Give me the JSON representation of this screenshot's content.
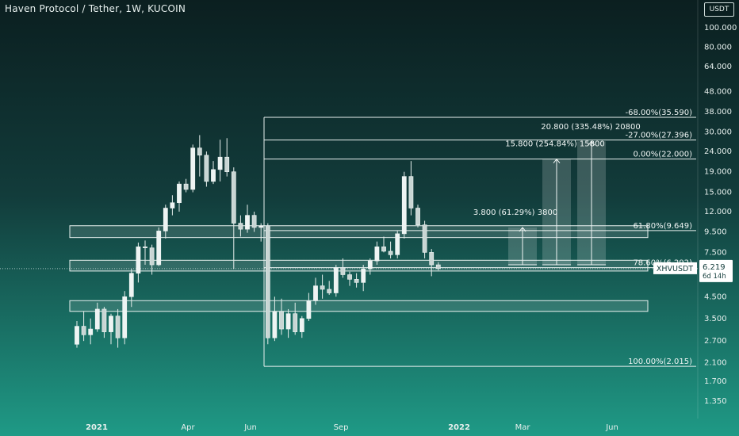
{
  "header": {
    "title": "Haven Protocol / Tether, 1W, KUCOIN",
    "unit": "USDT"
  },
  "chart_data": {
    "type": "candlestick",
    "scale": "log",
    "ylim": [
      1.2,
      125
    ],
    "x_tick_labels": [
      "2021",
      "Apr",
      "Jun",
      "Sep",
      "2022",
      "Mar",
      "Jun"
    ],
    "y_tick_labels": [
      "100.000",
      "80.000",
      "64.000",
      "48.000",
      "38.000",
      "30.000",
      "24.000",
      "19.000",
      "15.000",
      "12.000",
      "9.500",
      "7.500",
      "4.500",
      "3.500",
      "2.700",
      "2.100",
      "1.700",
      "1.350"
    ],
    "y_tick_values": [
      100,
      80,
      64,
      48,
      38,
      30,
      24,
      19,
      15,
      12,
      9.5,
      7.5,
      4.5,
      3.5,
      2.7,
      2.1,
      1.7,
      1.35
    ],
    "series_name": "XHVUSDT",
    "current_price": 6.219,
    "current_price_label": "6.219",
    "countdown_label": "6d 14h",
    "candles": [
      {
        "o": 2.6,
        "h": 3.4,
        "l": 2.5,
        "c": 3.2
      },
      {
        "o": 3.2,
        "h": 3.8,
        "l": 2.7,
        "c": 2.9
      },
      {
        "o": 2.9,
        "h": 3.5,
        "l": 2.6,
        "c": 3.1
      },
      {
        "o": 3.1,
        "h": 4.2,
        "l": 3.0,
        "c": 3.9
      },
      {
        "o": 3.9,
        "h": 4.0,
        "l": 2.8,
        "c": 3.0
      },
      {
        "o": 3.0,
        "h": 3.7,
        "l": 2.6,
        "c": 3.6
      },
      {
        "o": 3.6,
        "h": 3.9,
        "l": 2.5,
        "c": 2.8
      },
      {
        "o": 2.8,
        "h": 4.8,
        "l": 2.6,
        "c": 4.5
      },
      {
        "o": 4.5,
        "h": 6.2,
        "l": 4.0,
        "c": 5.9
      },
      {
        "o": 5.9,
        "h": 8.4,
        "l": 5.3,
        "c": 8.0
      },
      {
        "o": 8.0,
        "h": 8.6,
        "l": 6.5,
        "c": 7.9
      },
      {
        "o": 7.9,
        "h": 8.2,
        "l": 5.8,
        "c": 6.5
      },
      {
        "o": 6.5,
        "h": 10.0,
        "l": 6.4,
        "c": 9.6
      },
      {
        "o": 9.6,
        "h": 13.0,
        "l": 8.8,
        "c": 12.5
      },
      {
        "o": 12.5,
        "h": 14.5,
        "l": 11.5,
        "c": 13.3
      },
      {
        "o": 13.3,
        "h": 17.0,
        "l": 12.0,
        "c": 16.5
      },
      {
        "o": 16.5,
        "h": 17.5,
        "l": 15.0,
        "c": 15.5
      },
      {
        "o": 15.5,
        "h": 26.0,
        "l": 15.0,
        "c": 25.0
      },
      {
        "o": 25.0,
        "h": 29.0,
        "l": 18.0,
        "c": 23.0
      },
      {
        "o": 23.0,
        "h": 24.0,
        "l": 16.0,
        "c": 17.0
      },
      {
        "o": 17.0,
        "h": 21.5,
        "l": 16.5,
        "c": 19.5
      },
      {
        "o": 19.5,
        "h": 27.5,
        "l": 17.0,
        "c": 22.5
      },
      {
        "o": 22.5,
        "h": 28.0,
        "l": 18.0,
        "c": 19.0
      },
      {
        "o": 19.0,
        "h": 20.0,
        "l": 6.2,
        "c": 10.5
      },
      {
        "o": 10.5,
        "h": 11.5,
        "l": 9.0,
        "c": 9.8
      },
      {
        "o": 9.8,
        "h": 13.0,
        "l": 9.4,
        "c": 11.5
      },
      {
        "o": 11.5,
        "h": 12.0,
        "l": 9.5,
        "c": 10.0
      },
      {
        "o": 10.0,
        "h": 10.5,
        "l": 8.5,
        "c": 10.2
      },
      {
        "o": 10.2,
        "h": 10.5,
        "l": 2.6,
        "c": 2.8
      },
      {
        "o": 2.8,
        "h": 4.5,
        "l": 2.7,
        "c": 3.8
      },
      {
        "o": 3.8,
        "h": 4.4,
        "l": 2.9,
        "c": 3.1
      },
      {
        "o": 3.1,
        "h": 3.9,
        "l": 2.8,
        "c": 3.7
      },
      {
        "o": 3.7,
        "h": 4.2,
        "l": 2.9,
        "c": 3.0
      },
      {
        "o": 3.0,
        "h": 3.6,
        "l": 2.8,
        "c": 3.5
      },
      {
        "o": 3.5,
        "h": 4.7,
        "l": 3.4,
        "c": 4.3
      },
      {
        "o": 4.3,
        "h": 5.6,
        "l": 4.1,
        "c": 5.1
      },
      {
        "o": 5.1,
        "h": 5.8,
        "l": 4.4,
        "c": 4.9
      },
      {
        "o": 4.9,
        "h": 5.4,
        "l": 4.6,
        "c": 4.7
      },
      {
        "o": 4.7,
        "h": 6.5,
        "l": 4.5,
        "c": 6.3
      },
      {
        "o": 6.3,
        "h": 7.0,
        "l": 5.6,
        "c": 5.8
      },
      {
        "o": 5.8,
        "h": 6.0,
        "l": 5.1,
        "c": 5.5
      },
      {
        "o": 5.5,
        "h": 5.9,
        "l": 5.0,
        "c": 5.3
      },
      {
        "o": 5.3,
        "h": 6.5,
        "l": 4.8,
        "c": 6.2
      },
      {
        "o": 6.2,
        "h": 7.0,
        "l": 5.8,
        "c": 6.8
      },
      {
        "o": 6.8,
        "h": 8.5,
        "l": 6.5,
        "c": 8.0
      },
      {
        "o": 8.0,
        "h": 9.0,
        "l": 7.5,
        "c": 7.6
      },
      {
        "o": 7.6,
        "h": 8.5,
        "l": 7.0,
        "c": 7.3
      },
      {
        "o": 7.3,
        "h": 9.6,
        "l": 7.0,
        "c": 9.3
      },
      {
        "o": 9.3,
        "h": 19.0,
        "l": 8.8,
        "c": 18.0
      },
      {
        "o": 18.0,
        "h": 21.5,
        "l": 11.5,
        "c": 12.5
      },
      {
        "o": 12.5,
        "h": 13.0,
        "l": 10.0,
        "c": 10.3
      },
      {
        "o": 10.3,
        "h": 10.8,
        "l": 7.0,
        "c": 7.5
      },
      {
        "o": 7.5,
        "h": 7.8,
        "l": 5.7,
        "c": 6.5
      },
      {
        "o": 6.5,
        "h": 6.7,
        "l": 6.1,
        "c": 6.219
      }
    ],
    "zones": [
      {
        "from": 8.9,
        "to": 10.2
      },
      {
        "from": 6.05,
        "to": 6.85
      },
      {
        "from": 3.8,
        "to": 4.3
      }
    ],
    "fib_levels": [
      {
        "value": 35.59,
        "label": "-68.00%(35.590)"
      },
      {
        "value": 27.396,
        "label": "-27.00%(27.396)"
      },
      {
        "value": 22.0,
        "label": "0.00%(22.000)"
      },
      {
        "value": 9.649,
        "label": "61.80%(9.649)"
      },
      {
        "value": 6.292,
        "label": "78.60%(6.292)"
      },
      {
        "value": 2.015,
        "label": "100.00%(2.015)"
      }
    ],
    "projections": [
      {
        "label": "3.800 (61.29%) 3800",
        "value": 10.0
      },
      {
        "label": "15.800 (254.84%) 15800",
        "value": 22.0
      },
      {
        "label": "20.800 (335.48%) 20800",
        "value": 27.0
      }
    ]
  }
}
